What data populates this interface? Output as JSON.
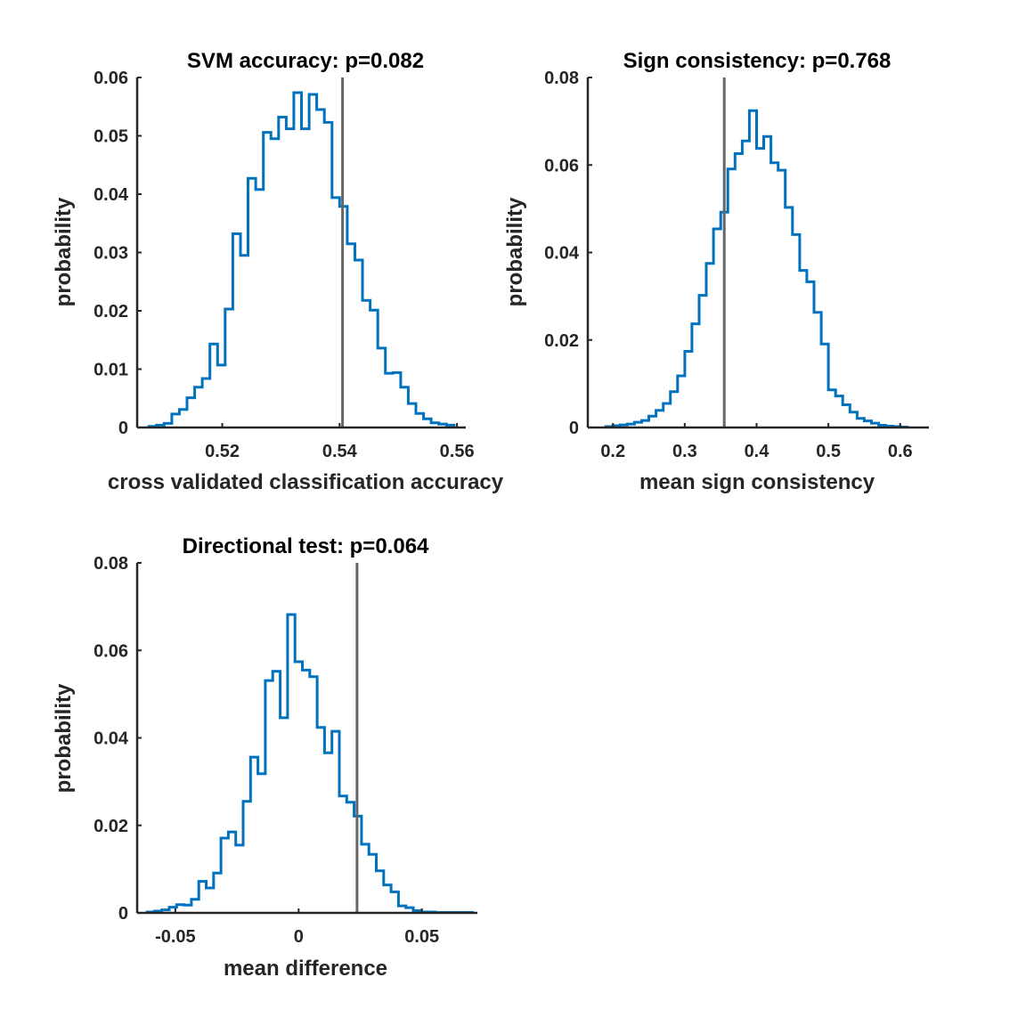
{
  "chart_data": [
    {
      "type": "histogram",
      "title": "SVM accuracy: p=0.082",
      "xlabel": "cross validated classification accuracy",
      "ylabel": "probability",
      "xlim": [
        0.5055,
        0.5615
      ],
      "ylim": [
        0,
        0.06
      ],
      "xticks": [
        0.52,
        0.54,
        0.56
      ],
      "xtick_labels": [
        "0.52",
        "0.54",
        "0.56"
      ],
      "yticks": [
        0,
        0.01,
        0.02,
        0.03,
        0.04,
        0.05,
        0.06
      ],
      "ytick_labels": [
        "0",
        "0.01",
        "0.02",
        "0.03",
        "0.04",
        "0.05",
        "0.06"
      ],
      "observed_value": 0.5405,
      "bin_edges": [
        0.5075,
        0.5088,
        0.5101,
        0.5114,
        0.5127,
        0.514,
        0.5153,
        0.5166,
        0.5179,
        0.5192,
        0.5205,
        0.5218,
        0.5231,
        0.5244,
        0.5257,
        0.527,
        0.5283,
        0.5296,
        0.5309,
        0.5322,
        0.5335,
        0.5348,
        0.5361,
        0.5374,
        0.5387,
        0.54,
        0.5413,
        0.5426,
        0.5439,
        0.5452,
        0.5465,
        0.5478,
        0.5491,
        0.5504,
        0.5517,
        0.553,
        0.5543,
        0.5556,
        0.5569,
        0.5582,
        0.5595
      ],
      "values": [
        0.0002,
        0.0004,
        0.0007,
        0.0023,
        0.0031,
        0.0051,
        0.0069,
        0.0084,
        0.0143,
        0.0107,
        0.0203,
        0.0332,
        0.0295,
        0.0427,
        0.0408,
        0.0506,
        0.0495,
        0.0532,
        0.0512,
        0.0574,
        0.0512,
        0.0571,
        0.0545,
        0.0523,
        0.0394,
        0.0379,
        0.0315,
        0.0287,
        0.0218,
        0.0201,
        0.0136,
        0.0093,
        0.0094,
        0.0069,
        0.0041,
        0.0024,
        0.0015,
        0.0008,
        0.0006,
        0.0004
      ]
    },
    {
      "type": "histogram",
      "title": "Sign consistency: p=0.768",
      "xlabel": "mean sign consistency",
      "ylabel": "probability",
      "xlim": [
        0.165,
        0.64
      ],
      "ylim": [
        0,
        0.08
      ],
      "xticks": [
        0.2,
        0.3,
        0.4,
        0.5,
        0.6
      ],
      "xtick_labels": [
        "0.2",
        "0.3",
        "0.4",
        "0.5",
        "0.6"
      ],
      "yticks": [
        0,
        0.02,
        0.04,
        0.06,
        0.08
      ],
      "ytick_labels": [
        "0",
        "0.02",
        "0.04",
        "0.06",
        "0.08"
      ],
      "observed_value": 0.355,
      "bin_edges": [
        0.19,
        0.2,
        0.21,
        0.22,
        0.23,
        0.24,
        0.25,
        0.26,
        0.27,
        0.28,
        0.29,
        0.3,
        0.31,
        0.32,
        0.33,
        0.34,
        0.35,
        0.36,
        0.37,
        0.38,
        0.39,
        0.4,
        0.41,
        0.42,
        0.43,
        0.44,
        0.45,
        0.46,
        0.47,
        0.48,
        0.49,
        0.5,
        0.51,
        0.52,
        0.53,
        0.54,
        0.55,
        0.56,
        0.57,
        0.58,
        0.59,
        0.6,
        0.61
      ],
      "values": [
        0.0002,
        0.0004,
        0.0006,
        0.0008,
        0.0012,
        0.0016,
        0.0026,
        0.0039,
        0.0055,
        0.0082,
        0.0118,
        0.0174,
        0.0237,
        0.0302,
        0.0375,
        0.0454,
        0.0492,
        0.0591,
        0.0626,
        0.0655,
        0.0724,
        0.0638,
        0.0665,
        0.0605,
        0.0588,
        0.0503,
        0.0441,
        0.0359,
        0.0333,
        0.0263,
        0.0191,
        0.0086,
        0.0072,
        0.0052,
        0.0035,
        0.0021,
        0.0015,
        0.001,
        0.0005,
        0.0003,
        0.0002,
        0.0001
      ]
    },
    {
      "type": "histogram",
      "title": "Directional test: p=0.064",
      "xlabel": "mean difference",
      "ylabel": "probability",
      "xlim": [
        -0.0655,
        0.0725
      ],
      "ylim": [
        0,
        0.08
      ],
      "xticks": [
        -0.05,
        0,
        0.05
      ],
      "xtick_labels": [
        "-0.05",
        "0",
        "0.05"
      ],
      "yticks": [
        0,
        0.02,
        0.04,
        0.06,
        0.08
      ],
      "ytick_labels": [
        "0",
        "0.02",
        "0.04",
        "0.06",
        "0.08"
      ],
      "observed_value": 0.0237,
      "bin_edges": [
        -0.0615,
        -0.0585,
        -0.0555,
        -0.0525,
        -0.0495,
        -0.0465,
        -0.0435,
        -0.0405,
        -0.0375,
        -0.0345,
        -0.0315,
        -0.0285,
        -0.0255,
        -0.0225,
        -0.0195,
        -0.0165,
        -0.0135,
        -0.0105,
        -0.0075,
        -0.0045,
        -0.0015,
        0.0015,
        0.0045,
        0.0075,
        0.0105,
        0.0135,
        0.0165,
        0.0195,
        0.0225,
        0.0255,
        0.0285,
        0.0315,
        0.0345,
        0.0375,
        0.0405,
        0.0435,
        0.0465,
        0.0495,
        0.0525,
        0.0555,
        0.0585,
        0.0615,
        0.0645,
        0.0675,
        0.0705
      ],
      "values": [
        0.0002,
        0.0004,
        0.0007,
        0.0013,
        0.0019,
        0.0018,
        0.0031,
        0.0072,
        0.0057,
        0.0091,
        0.0171,
        0.0185,
        0.0155,
        0.0255,
        0.0356,
        0.0318,
        0.0531,
        0.0552,
        0.0446,
        0.0682,
        0.0574,
        0.0555,
        0.054,
        0.0424,
        0.0366,
        0.0415,
        0.0267,
        0.0253,
        0.0221,
        0.0157,
        0.0134,
        0.0096,
        0.0064,
        0.0048,
        0.0016,
        0.0012,
        0.0005,
        0.0002,
        0.0002,
        0.0001,
        0.0001,
        0.0001,
        0.0001,
        0.0001
      ]
    }
  ],
  "colors": {
    "histogram_line": "#0072BD",
    "observed_line": "#666666",
    "axes": "#262626",
    "background": "#ffffff"
  }
}
